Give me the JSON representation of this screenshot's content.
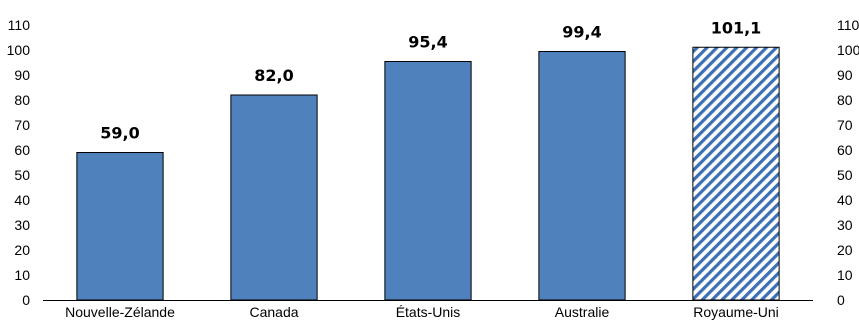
{
  "chart_data": {
    "type": "bar",
    "categories": [
      "Nouvelle-Zélande",
      "Canada",
      "États-Unis",
      "Australie",
      "Royaume-Uni"
    ],
    "values": [
      59.0,
      82.0,
      95.4,
      99.4,
      101.1
    ],
    "data_labels": [
      "59,0",
      "82,0",
      "95,4",
      "99,4",
      "101,1"
    ],
    "hatched": [
      false,
      false,
      false,
      false,
      true
    ],
    "ylim": [
      0,
      110
    ],
    "yticks": [
      0,
      10,
      20,
      30,
      40,
      50,
      60,
      70,
      80,
      90,
      100,
      110
    ],
    "y_axis_sides": "both",
    "grid": false,
    "colors": {
      "bar": "#4F81BD",
      "bar_outline": "#000000",
      "hatch_fill": "#3B6FB6"
    },
    "title": "",
    "xlabel": "",
    "ylabel": ""
  }
}
